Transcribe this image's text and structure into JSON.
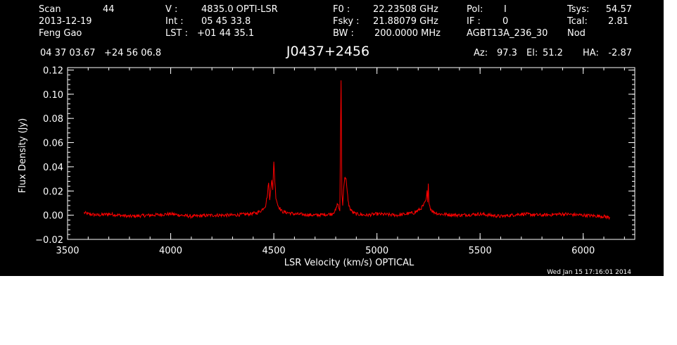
{
  "header": {
    "row1": {
      "scan_label": "Scan",
      "scan_value": "44",
      "v_label": "V   :",
      "v_value": "4835.0 OPTI-LSR",
      "f0_label": "F0   :",
      "f0_value": "22.23508 GHz",
      "pol_label": "Pol:",
      "pol_value": "I",
      "tsys_label": "Tsys:",
      "tsys_value": "54.57"
    },
    "row2": {
      "date": "2013-12-19",
      "int_label": "Int  :",
      "int_value": "05 45 33.8",
      "fsky_label": "Fsky :",
      "fsky_value": "21.88079 GHz",
      "if_label": "IF :",
      "if_value": "0",
      "tcal_label": "Tcal:",
      "tcal_value": "2.81"
    },
    "row3": {
      "observer": "Feng Gao",
      "lst_label": "LST :",
      "lst_value": "+01 44 35.1",
      "bw_label": "BW   :",
      "bw_value": "200.0000 MHz",
      "project": "AGBT13A_236_30",
      "mode": "Nod"
    },
    "coords": "04 37 03.67   +24 56 06.8",
    "source": "J0437+2456",
    "az_label": "Az:",
    "az_value": "97.3",
    "el_label": "El:",
    "el_value": "51.2",
    "ha_label": "HA:",
    "ha_value": "-2.87"
  },
  "footer": {
    "timestamp": "Wed Jan 15 17:16:01 2014"
  },
  "colors": {
    "background": "#000000",
    "axes": "#ffffff",
    "trace": "#ff0000"
  },
  "chart_data": {
    "type": "line",
    "title": "J0437+2456",
    "xlabel": "LSR Velocity (km/s) OPTICAL",
    "ylabel": "Flux Density (Jy)",
    "xlim": [
      3500,
      6250
    ],
    "ylim": [
      -0.02,
      0.122
    ],
    "xticks": [
      3500,
      4000,
      4500,
      5000,
      5500,
      6000
    ],
    "xtick_labels": [
      "3500",
      "4000",
      "4500",
      "5000",
      "5500",
      "6000"
    ],
    "yticks": [
      -0.02,
      0.0,
      0.02,
      0.04,
      0.06,
      0.08,
      0.1,
      0.12
    ],
    "ytick_labels": [
      "−0.02",
      "0.00",
      "0.02",
      "0.04",
      "0.06",
      "0.08",
      "0.10",
      "0.12"
    ],
    "grid": false,
    "series": [
      {
        "x": [
          3580,
          3600,
          3650,
          3700,
          3800,
          3900,
          4000,
          4100,
          4200,
          4300,
          4380,
          4420,
          4440,
          4460,
          4470,
          4475,
          4480,
          4485,
          4490,
          4495,
          4500,
          4505,
          4510,
          4520,
          4540,
          4600,
          4700,
          4780,
          4800,
          4810,
          4815,
          4820,
          4826,
          4830,
          4834,
          4838,
          4842,
          4846,
          4850,
          4854,
          4858,
          4862,
          4868,
          4875,
          4885,
          4900,
          4950,
          5000,
          5100,
          5180,
          5210,
          5225,
          5235,
          5240,
          5243,
          5246,
          5249,
          5252,
          5258,
          5270,
          5300,
          5400,
          5500,
          5600,
          5700,
          5800,
          5900,
          6000,
          6100,
          6130
        ],
        "y": [
          0.002,
          0.001,
          0.0,
          0.001,
          -0.001,
          0.0,
          0.001,
          -0.001,
          0.0,
          0.0,
          0.001,
          0.002,
          0.004,
          0.008,
          0.018,
          0.028,
          0.012,
          0.022,
          0.03,
          0.02,
          0.045,
          0.028,
          0.015,
          0.008,
          0.003,
          0.001,
          0.0,
          0.001,
          0.004,
          0.01,
          0.006,
          0.004,
          0.112,
          0.018,
          0.008,
          0.022,
          0.028,
          0.032,
          0.03,
          0.022,
          0.016,
          0.01,
          0.006,
          0.004,
          0.002,
          0.001,
          0.0,
          0.001,
          0.0,
          0.002,
          0.005,
          0.008,
          0.011,
          0.014,
          0.02,
          0.01,
          0.025,
          0.012,
          0.006,
          0.003,
          0.001,
          0.0,
          0.001,
          -0.001,
          0.001,
          0.0,
          0.001,
          0.0,
          -0.001,
          -0.002
        ]
      }
    ]
  }
}
